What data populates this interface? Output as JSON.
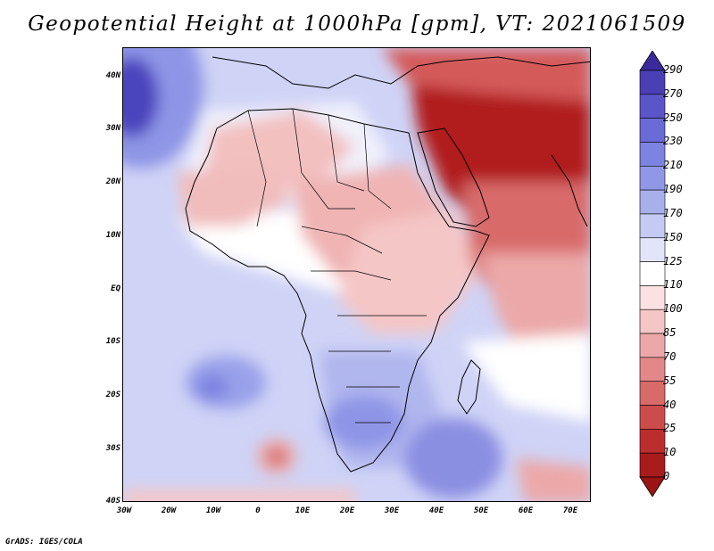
{
  "title": "Geopotential Height at 1000hPa [gpm], VT: 2021061509",
  "credit": "GrADS: IGES/COLA",
  "map": {
    "variable": "Geopotential Height",
    "level": "1000hPa",
    "units": "gpm",
    "valid_time": "2021061509",
    "lon_range": [
      -30,
      75
    ],
    "lat_range": [
      -40,
      45
    ],
    "lat_labels": [
      "40N",
      "30N",
      "20N",
      "10N",
      "EQ",
      "10S",
      "20S",
      "30S",
      "40S"
    ],
    "lon_labels": [
      "30W",
      "20W",
      "10W",
      "0",
      "10E",
      "20E",
      "30E",
      "40E",
      "50E",
      "60E",
      "70E"
    ]
  },
  "colorbar": {
    "labels": [
      "290",
      "270",
      "250",
      "230",
      "210",
      "190",
      "170",
      "150",
      "125",
      "110",
      "100",
      "85",
      "70",
      "55",
      "40",
      "25",
      "10",
      "0"
    ],
    "colors": [
      "#3b2a9c",
      "#4a3fb5",
      "#5a55c8",
      "#6a6bd6",
      "#7d83e0",
      "#9098e6",
      "#a8b0ec",
      "#c4caf3",
      "#e2e5fa",
      "#ffffff",
      "#fbe1e1",
      "#f5c6c6",
      "#eca8a8",
      "#e28888",
      "#d86a6a",
      "#cc4c4c",
      "#bc2e2e",
      "#a81c1c",
      "#9a1414"
    ]
  }
}
